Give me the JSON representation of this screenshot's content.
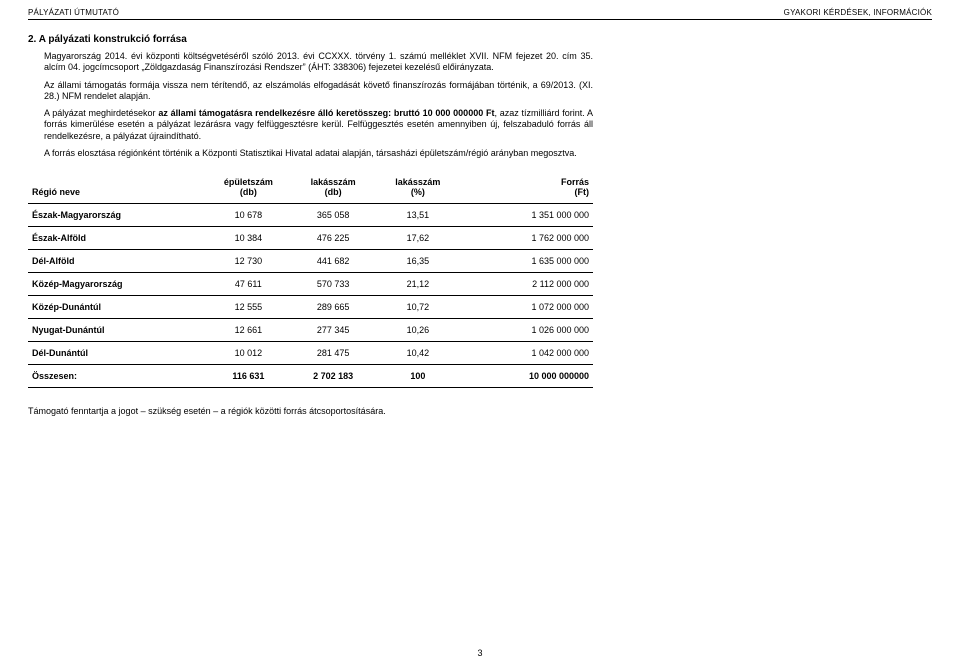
{
  "header": {
    "left": "PÁLYÁZATI ÚTMUTATÓ",
    "right": "GYAKORI KÉRDÉSEK, INFORMÁCIÓK"
  },
  "section_number_title": "2. A pályázati konstrukció forrása",
  "p1": "Magyarország 2014. évi központi költségvetéséről szóló 2013. évi CCXXX. törvény 1. számú melléklet XVII. NFM fejezet 20. cím 35. alcím 04. jogcímcsoport „Zöldgazdaság Finanszírozási Rendszer” (ÁHT: 338306) fejezetei kezelésű előirányzata.",
  "p2": "Az állami támogatás formája vissza nem térítendő, az elszámolás elfogadását követő finanszírozás formájában történik, a 69/2013. (XI. 28.) NFM rendelet alapján.",
  "p3_pre": "A pályázat meghirdetésekor ",
  "p3_bold": "az állami támogatásra rendelkezésre álló keretösszeg: bruttó 10 000 000000 Ft",
  "p3_post": ", azaz tízmilliárd forint. A forrás kimerülése esetén a pályázat lezárásra vagy felfüggesztésre kerül. Felfüggesztés esetén amennyiben új, felszabaduló forrás áll rendelkezésre, a pályázat újraindítható.",
  "p4": "A forrás elosztása régiónként történik a Központi Statisztikai Hivatal adatai alapján, társasházi épületszám/régió arányban megosztva.",
  "table": {
    "columns": {
      "c0": "Régió neve",
      "c1_l1": "épületszám",
      "c1_l2": "(db)",
      "c2_l1": "lakásszám",
      "c2_l2": "(db)",
      "c3_l1": "lakásszám",
      "c3_l2": "(%)",
      "c4_l1": "Forrás",
      "c4_l2": "(Ft)"
    },
    "rows": [
      {
        "region": "Észak-Magyarország",
        "epulet": "10 678",
        "lakas": "365 058",
        "pct": "13,51",
        "forras": "1 351 000 000"
      },
      {
        "region": "Észak-Alföld",
        "epulet": "10 384",
        "lakas": "476 225",
        "pct": "17,62",
        "forras": "1 762 000 000"
      },
      {
        "region": "Dél-Alföld",
        "epulet": "12 730",
        "lakas": "441 682",
        "pct": "16,35",
        "forras": "1 635 000 000"
      },
      {
        "region": "Közép-Magyarország",
        "epulet": "47 611",
        "lakas": "570 733",
        "pct": "21,12",
        "forras": "2 112 000 000"
      },
      {
        "region": "Közép-Dunántúl",
        "epulet": "12 555",
        "lakas": "289 665",
        "pct": "10,72",
        "forras": "1 072 000 000"
      },
      {
        "region": "Nyugat-Dunántúl",
        "epulet": "12 661",
        "lakas": "277 345",
        "pct": "10,26",
        "forras": "1 026 000 000"
      },
      {
        "region": "Dél-Dunántúl",
        "epulet": "10 012",
        "lakas": "281 475",
        "pct": "10,42",
        "forras": "1 042 000 000"
      }
    ],
    "total": {
      "region": "Összesen:",
      "epulet": "116 631",
      "lakas": "2 702 183",
      "pct": "100",
      "forras": "10 000 000000"
    }
  },
  "footnote": "Támogató fenntartja a jogot – szükség esetén – a régiók közötti forrás átcsoportosítására.",
  "page_number": "3",
  "style": {
    "col_widths": {
      "c0": "32%",
      "c1": "14%",
      "c2": "16%",
      "c3": "14%",
      "c4": "24%"
    }
  }
}
